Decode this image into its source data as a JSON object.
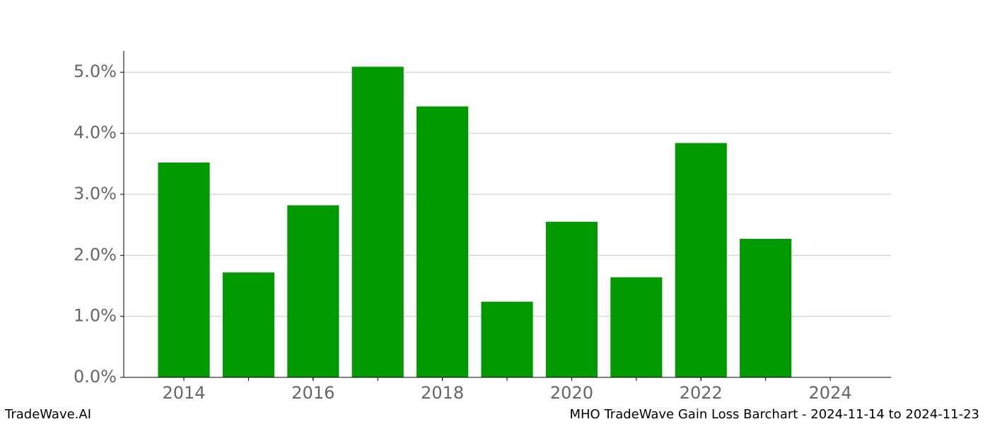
{
  "chart_data": {
    "type": "bar",
    "x": [
      2014,
      2015,
      2016,
      2017,
      2018,
      2019,
      2020,
      2021,
      2022,
      2023
    ],
    "values": [
      3.52,
      1.72,
      2.82,
      5.09,
      4.44,
      1.24,
      2.55,
      1.64,
      3.84,
      2.27
    ],
    "color": "#009900",
    "xlim": [
      2013.07,
      2024.94
    ],
    "xticks": [
      2014,
      2016,
      2018,
      2020,
      2022,
      2024
    ],
    "ylim": [
      0,
      5.35
    ],
    "yticks": [
      {
        "value": 0,
        "label": "0.0%"
      },
      {
        "value": 1,
        "label": "1.0%"
      },
      {
        "value": 2,
        "label": "2.0%"
      },
      {
        "value": 3,
        "label": "3.0%"
      },
      {
        "value": 4,
        "label": "4.0%"
      },
      {
        "value": 5,
        "label": "5.0%"
      }
    ],
    "grid": true
  },
  "footer": {
    "left": "TradeWave.AI",
    "right": "MHO TradeWave Gain Loss Barchart - 2024-11-14 to 2024-11-23"
  }
}
